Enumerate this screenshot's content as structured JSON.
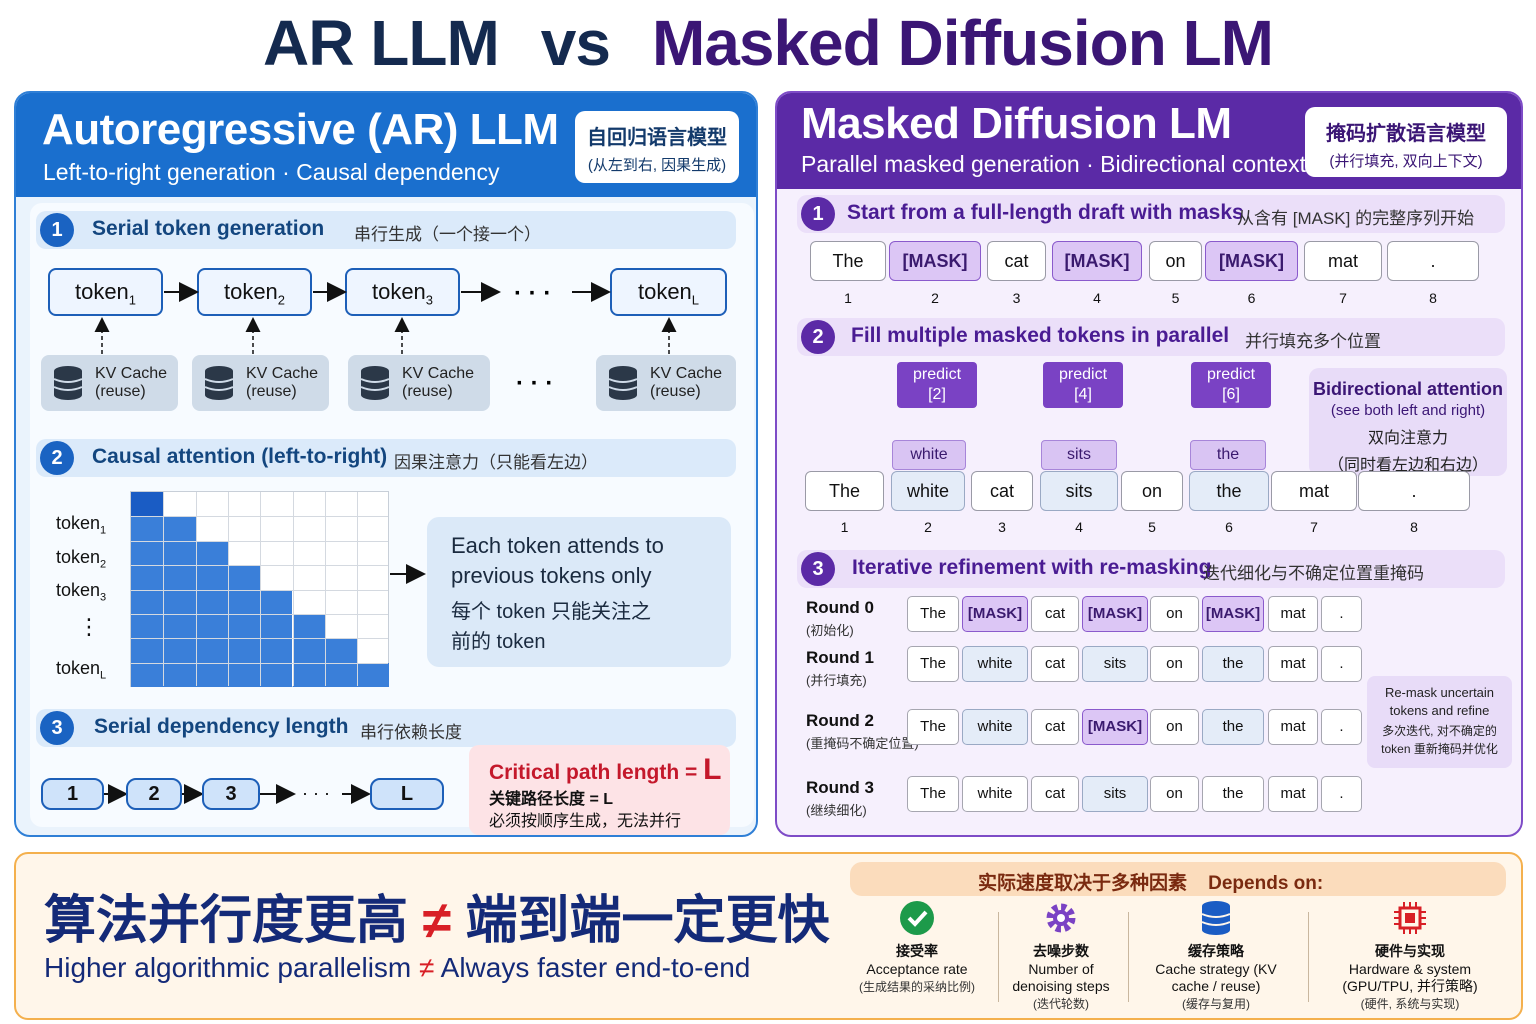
{
  "title": {
    "left": "AR LLM",
    "vs": "vs",
    "right": "Masked Diffusion LM"
  },
  "ar": {
    "title": "Autoregressive (AR) LLM",
    "subtitle": "Left-to-right generation · Causal dependency",
    "badge_zh": "自回归语言模型",
    "badge_sub": "(从左到右, 因果生成)",
    "s1": {
      "num": "1",
      "title": "Serial  token generation",
      "zh": "串行生成（一个接一个）"
    },
    "tokens": [
      {
        "base": "token",
        "sub": "1"
      },
      {
        "base": "token",
        "sub": "2"
      },
      {
        "base": "token",
        "sub": "3"
      },
      {
        "base": "token",
        "sub": "L"
      }
    ],
    "dots": "· · ·",
    "kv_label": "KV Cache",
    "kv_sub": "(reuse)",
    "s2": {
      "num": "2",
      "title": "Causal attention (left-to-right)",
      "zh": "因果注意力（只能看左边）"
    },
    "rows": [
      {
        "base": "token",
        "sub": "1"
      },
      {
        "base": "token",
        "sub": "2"
      },
      {
        "base": "token",
        "sub": "3"
      },
      {
        "base": "token",
        "sub": "L"
      }
    ],
    "vdots": "⋮",
    "expl_en": "Each token attends to previous tokens only",
    "expl_zh": "每个 token 只能关注之前的 token",
    "s3": {
      "num": "3",
      "title": "Serial dependency length",
      "zh": "串行依赖长度"
    },
    "chain": [
      "1",
      "2",
      "3",
      "L"
    ],
    "chain_dots": "· · ·",
    "critical_en": "Critical path length = ",
    "critical_L": "L",
    "critical_zh": "关键路径长度 = L",
    "critical_zh2": "必须按顺序生成，无法并行"
  },
  "md": {
    "title": "Masked Diffusion LM",
    "subtitle": "Parallel masked generation · Bidirectional context",
    "badge_zh": "掩码扩散语言模型",
    "badge_sub": "(并行填充, 双向上下文)",
    "s1": {
      "num": "1",
      "title": "Start from a full-length draft  with masks",
      "zh": "从含有 [MASK] 的完整序列开始"
    },
    "draft": [
      "The",
      "[MASK]",
      "cat",
      "[MASK]",
      "on",
      "[MASK]",
      "mat",
      "."
    ],
    "indices": [
      "1",
      "2",
      "3",
      "4",
      "5",
      "6",
      "7",
      "8"
    ],
    "s2": {
      "num": "2",
      "title": "Fill multiple masked tokens  in parallel",
      "zh": "并行填充多个位置"
    },
    "predict": [
      {
        "label": "predict",
        "pos": "[2]",
        "word": "white"
      },
      {
        "label": "predict",
        "pos": "[4]",
        "word": "sits"
      },
      {
        "label": "predict",
        "pos": "[6]",
        "word": "the"
      }
    ],
    "bidir_title": "Bidirectional attention",
    "bidir_sub": "(see both left and right)",
    "bidir_zh": "双向注意力",
    "bidir_zh2": "（同时看左边和右边）",
    "filled": [
      "The",
      "white",
      "cat",
      "sits",
      "on",
      "the",
      "mat",
      "."
    ],
    "s3": {
      "num": "3",
      "title": "Iterative refinement with re-masking",
      "zh": "迭代细化与不确定位置重掩码"
    },
    "rounds": [
      {
        "name": "Round 0",
        "zh": "(初始化)",
        "tokens": [
          "The",
          "[MASK]",
          "cat",
          "[MASK]",
          "on",
          "[MASK]",
          "mat",
          "."
        ]
      },
      {
        "name": "Round 1",
        "zh": "(并行填充)",
        "tokens": [
          "The",
          "white",
          "cat",
          "sits",
          "on",
          "the",
          "mat",
          "."
        ]
      },
      {
        "name": "Round 2",
        "zh": "(重掩码不确定位置)",
        "tokens": [
          "The",
          "white",
          "cat",
          "[MASK]",
          "on",
          "the",
          "mat",
          "."
        ]
      },
      {
        "name": "Round 3",
        "zh": "(继续细化)",
        "tokens": [
          "The",
          "white",
          "cat",
          "sits",
          "on",
          "the",
          "mat",
          "."
        ]
      }
    ],
    "remask_en": "Re-mask uncertain tokens and refine",
    "remask_zh": "多次迭代, 对不确定的token 重新掩码并优化"
  },
  "bottom": {
    "zh_left": "算法并行度更高",
    "neq": "≠",
    "zh_right": "端到端一定更快",
    "en_left": "Higher algorithmic parallelism",
    "en_right": "Always faster end-to-end",
    "depends_zh": "实际速度取决于多种因素",
    "depends_en": "Depends on:",
    "factors": [
      {
        "icon": "check-circle-icon",
        "zh": "接受率",
        "en": "Acceptance rate",
        "sub": "(生成结果的采纳比例)"
      },
      {
        "icon": "gear-icon",
        "zh": "去噪步数",
        "en": "Number of denoising steps",
        "sub": "(迭代轮数)"
      },
      {
        "icon": "database-icon",
        "zh": "缓存策略",
        "en": "Cache strategy (KV cache / reuse)",
        "sub": "(缓存与复用)"
      },
      {
        "icon": "chip-icon",
        "zh": "硬件与实现",
        "en": "Hardware & system (GPU/TPU, 并行策略)",
        "sub": "(硬件, 系统与实现)"
      }
    ]
  },
  "colors": {
    "ar_blue": "#1a6fce",
    "md_purple": "#5b2aa6",
    "mask": "#dcc6f5",
    "grid_fill": "#3a7fd9",
    "grid_diag": "#1a5cc4",
    "neq_red": "#d81f26",
    "check_green": "#1d9a4a",
    "bottom_border": "#f4b04d"
  }
}
